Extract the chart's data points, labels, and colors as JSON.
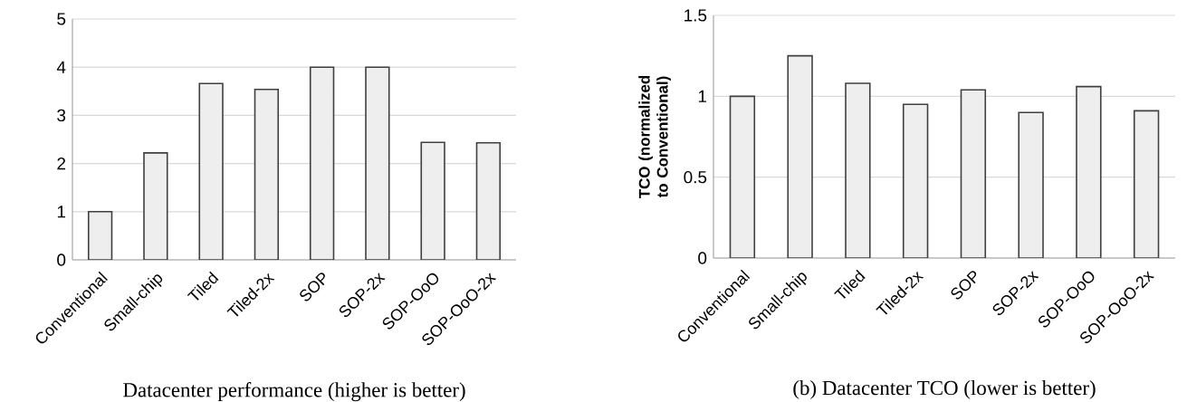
{
  "chart_data": [
    {
      "type": "bar",
      "title": "Datacenter performance (higher is better)",
      "categories": [
        "Conventional",
        "Small-chip",
        "Tiled",
        "Tiled-2x",
        "SOP",
        "SOP-2x",
        "SOP-OoO",
        "SOP-OoO-2x"
      ],
      "values": [
        1.0,
        2.22,
        3.66,
        3.54,
        4.0,
        4.0,
        2.44,
        2.43
      ],
      "color": "#eeeeee",
      "ylim": [
        0,
        5
      ],
      "yticks": [
        0,
        1,
        2,
        3,
        4,
        5
      ],
      "grid": "y"
    },
    {
      "type": "bar",
      "title": "(b) Datacenter TCO (lower is better)",
      "ylabel": "TCO (normalized to Conventional)",
      "categories": [
        "Conventional",
        "Small-chip",
        "Tiled",
        "Tiled-2x",
        "SOP",
        "SOP-2x",
        "SOP-OoO",
        "SOP-OoO-2x"
      ],
      "values": [
        1.0,
        1.25,
        1.08,
        0.95,
        1.04,
        0.9,
        1.06,
        0.91
      ],
      "color": "#eeeeee",
      "ylim": [
        0,
        1.5
      ],
      "yticks": [
        0,
        0.5,
        1,
        1.5
      ],
      "grid": "y"
    }
  ]
}
